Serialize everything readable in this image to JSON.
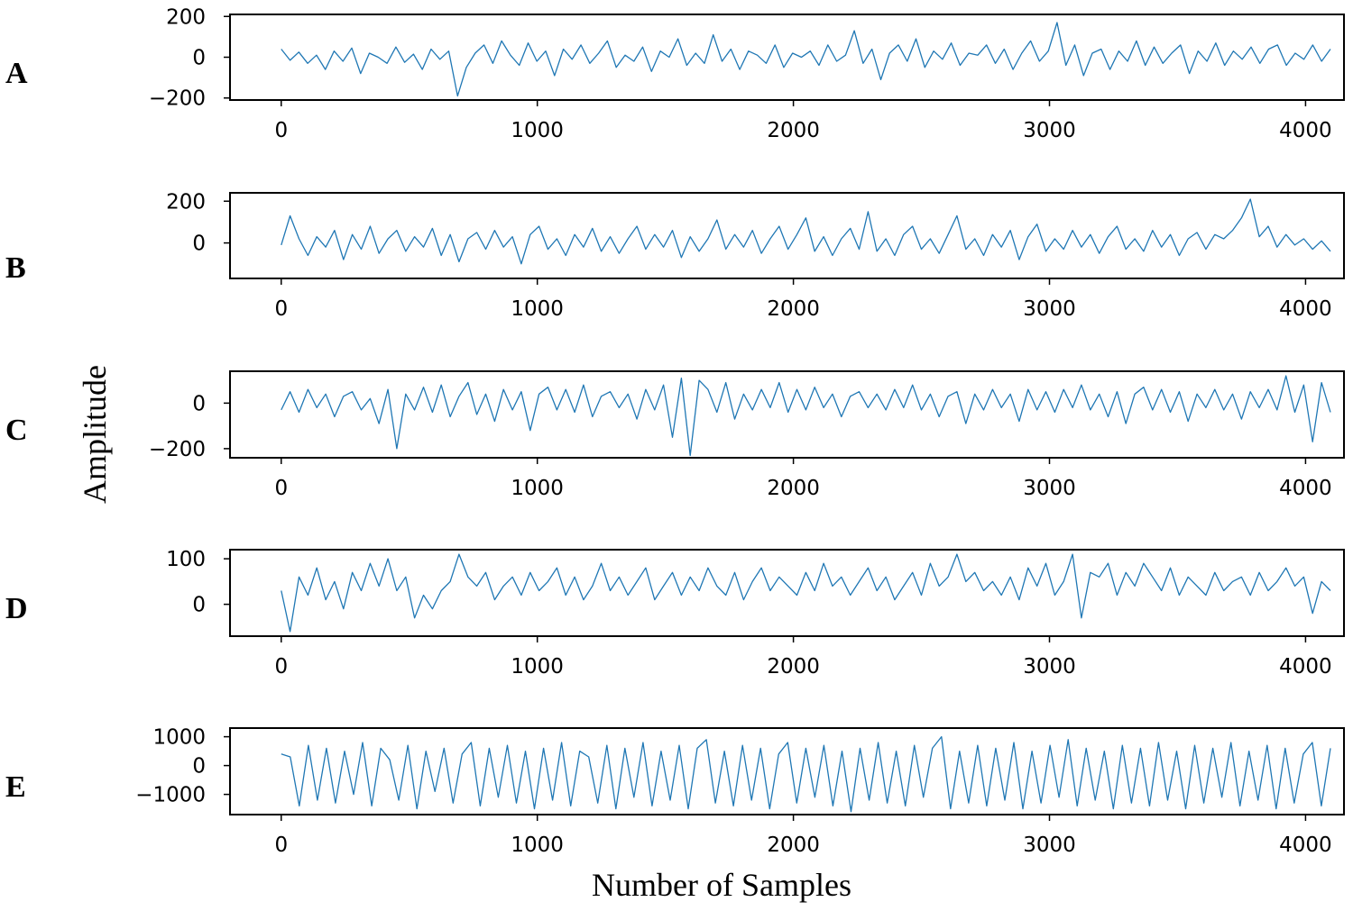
{
  "figure": {
    "xlabel": "Number of Samples",
    "ylabel": "Amplitude",
    "line_color": "#1f77b4"
  },
  "chart_data": [
    {
      "type": "line",
      "panel_label": "A",
      "xlim": [
        -200,
        4150
      ],
      "ylim": [
        -210,
        210
      ],
      "x_ticks": [
        0,
        1000,
        2000,
        3000,
        4000
      ],
      "y_ticks": [
        200,
        0,
        -200
      ],
      "series_x_range": [
        0,
        4097
      ],
      "sample_count": 4097,
      "values_approx": [
        40,
        -15,
        25,
        -30,
        10,
        -60,
        30,
        -20,
        45,
        -80,
        20,
        0,
        -30,
        50,
        -25,
        15,
        -60,
        40,
        -10,
        30,
        -190,
        -50,
        20,
        60,
        -30,
        80,
        10,
        -40,
        70,
        -20,
        30,
        -90,
        40,
        -10,
        60,
        -30,
        20,
        80,
        -50,
        10,
        -20,
        50,
        -70,
        30,
        0,
        90,
        -40,
        20,
        -30,
        110,
        -20,
        40,
        -60,
        30,
        10,
        -30,
        60,
        -50,
        20,
        0,
        30,
        -40,
        60,
        -20,
        10,
        130,
        -30,
        40,
        -110,
        20,
        60,
        -20,
        90,
        -50,
        30,
        -10,
        70,
        -40,
        20,
        10,
        60,
        -30,
        40,
        -60,
        20,
        80,
        -20,
        30,
        170,
        -40,
        60,
        -90,
        20,
        40,
        -60,
        30,
        -20,
        80,
        -40,
        50,
        -30,
        20,
        60,
        -80,
        30,
        -20,
        70,
        -40,
        30,
        -10,
        50,
        -30,
        40,
        60,
        -40,
        20,
        -10,
        60,
        -20,
        40
      ]
    },
    {
      "type": "line",
      "panel_label": "B",
      "xlim": [
        -200,
        4150
      ],
      "ylim": [
        -170,
        240
      ],
      "x_ticks": [
        0,
        1000,
        2000,
        3000,
        4000
      ],
      "y_ticks": [
        200,
        0
      ],
      "series_x_range": [
        0,
        4097
      ],
      "sample_count": 4097,
      "values_approx": [
        -10,
        130,
        20,
        -60,
        30,
        -20,
        60,
        -80,
        40,
        -30,
        80,
        -50,
        20,
        60,
        -40,
        30,
        -20,
        70,
        -60,
        40,
        -90,
        20,
        50,
        -30,
        60,
        -20,
        30,
        -100,
        40,
        80,
        -30,
        20,
        -60,
        40,
        -20,
        70,
        -40,
        30,
        -50,
        20,
        80,
        -30,
        40,
        -20,
        60,
        -70,
        30,
        -40,
        20,
        110,
        -30,
        40,
        -20,
        60,
        -50,
        20,
        80,
        -30,
        40,
        120,
        -40,
        30,
        -60,
        20,
        70,
        -30,
        150,
        -40,
        20,
        -60,
        40,
        80,
        -30,
        20,
        -50,
        40,
        130,
        -30,
        20,
        -60,
        40,
        -20,
        60,
        -80,
        30,
        90,
        -40,
        20,
        -30,
        60,
        -20,
        40,
        -50,
        30,
        80,
        -30,
        20,
        -40,
        60,
        -20,
        40,
        -60,
        20,
        50,
        -30,
        40,
        20,
        60,
        120,
        210,
        30,
        80,
        -20,
        40,
        -10,
        20,
        -30,
        10,
        -40
      ]
    },
    {
      "type": "line",
      "panel_label": "C",
      "xlim": [
        -200,
        4150
      ],
      "ylim": [
        -240,
        140
      ],
      "x_ticks": [
        0,
        1000,
        2000,
        3000,
        4000
      ],
      "y_ticks": [
        0,
        -200
      ],
      "series_x_range": [
        0,
        4097
      ],
      "sample_count": 4097,
      "values_approx": [
        -30,
        50,
        -40,
        60,
        -20,
        40,
        -60,
        30,
        50,
        -30,
        20,
        -90,
        60,
        -200,
        40,
        -30,
        70,
        -40,
        80,
        -60,
        30,
        90,
        -50,
        40,
        -80,
        60,
        -30,
        50,
        -120,
        40,
        70,
        -30,
        60,
        -40,
        80,
        -60,
        30,
        50,
        -20,
        40,
        -70,
        60,
        -30,
        80,
        -150,
        110,
        -230,
        100,
        60,
        -40,
        90,
        -70,
        40,
        -30,
        60,
        -20,
        90,
        -40,
        60,
        -30,
        70,
        -20,
        40,
        -60,
        30,
        50,
        -20,
        40,
        -30,
        60,
        -20,
        80,
        -30,
        40,
        -60,
        30,
        50,
        -90,
        40,
        -30,
        60,
        -20,
        40,
        -80,
        60,
        -30,
        50,
        -40,
        60,
        -20,
        80,
        -30,
        40,
        -60,
        50,
        -90,
        40,
        70,
        -30,
        60,
        -40,
        50,
        -80,
        40,
        -20,
        60,
        -30,
        40,
        -70,
        50,
        -20,
        60,
        -30,
        120,
        -40,
        80,
        -170,
        90,
        -40
      ]
    },
    {
      "type": "line",
      "panel_label": "D",
      "xlim": [
        -200,
        4150
      ],
      "ylim": [
        -70,
        120
      ],
      "x_ticks": [
        0,
        1000,
        2000,
        3000,
        4000
      ],
      "y_ticks": [
        100,
        0
      ],
      "series_x_range": [
        0,
        4097
      ],
      "sample_count": 4097,
      "values_approx": [
        30,
        -60,
        60,
        20,
        80,
        10,
        50,
        -10,
        70,
        30,
        90,
        40,
        100,
        30,
        60,
        -30,
        20,
        -10,
        30,
        50,
        110,
        60,
        40,
        70,
        10,
        40,
        60,
        20,
        70,
        30,
        50,
        80,
        20,
        60,
        10,
        40,
        90,
        30,
        60,
        20,
        50,
        80,
        10,
        40,
        70,
        20,
        60,
        30,
        80,
        40,
        20,
        70,
        10,
        50,
        80,
        30,
        60,
        40,
        20,
        70,
        30,
        90,
        40,
        60,
        20,
        50,
        80,
        30,
        60,
        10,
        40,
        70,
        20,
        90,
        40,
        60,
        110,
        50,
        70,
        30,
        50,
        20,
        60,
        10,
        80,
        40,
        90,
        20,
        50,
        110,
        -30,
        70,
        60,
        90,
        20,
        70,
        40,
        90,
        60,
        30,
        80,
        20,
        60,
        40,
        20,
        70,
        30,
        50,
        60,
        20,
        70,
        30,
        50,
        80,
        40,
        60,
        -20,
        50,
        30
      ]
    },
    {
      "type": "line",
      "panel_label": "E",
      "xlim": [
        -200,
        4150
      ],
      "ylim": [
        -1700,
        1300
      ],
      "x_ticks": [
        0,
        1000,
        2000,
        3000,
        4000
      ],
      "y_ticks": [
        1000,
        0,
        -1000
      ],
      "series_x_range": [
        0,
        4097
      ],
      "sample_count": 4097,
      "values_approx": [
        400,
        300,
        -1400,
        700,
        -1200,
        600,
        -1300,
        500,
        -1000,
        800,
        -1400,
        600,
        200,
        -1200,
        700,
        -1500,
        500,
        -900,
        600,
        -1300,
        400,
        800,
        -1400,
        600,
        -1100,
        700,
        -1300,
        500,
        -1500,
        600,
        -1200,
        800,
        -1400,
        500,
        300,
        -1300,
        700,
        -1500,
        600,
        -1100,
        800,
        -1400,
        500,
        -1200,
        700,
        -1500,
        600,
        900,
        -1300,
        500,
        -1400,
        700,
        -1200,
        600,
        -1500,
        400,
        800,
        -1300,
        600,
        -1100,
        700,
        -1400,
        500,
        -1600,
        600,
        -1200,
        800,
        -1300,
        500,
        -1400,
        700,
        -1100,
        600,
        1000,
        -1500,
        500,
        -1300,
        700,
        -1400,
        600,
        -1200,
        800,
        -1500,
        500,
        -1300,
        700,
        -1100,
        900,
        -1400,
        600,
        -1200,
        500,
        -1500,
        700,
        -1300,
        600,
        -1400,
        800,
        -1200,
        500,
        -1500,
        700,
        -1300,
        600,
        -1100,
        800,
        -1400,
        500,
        -1200,
        700,
        -1500,
        600,
        -1300,
        400,
        800,
        -1400,
        600
      ]
    }
  ]
}
